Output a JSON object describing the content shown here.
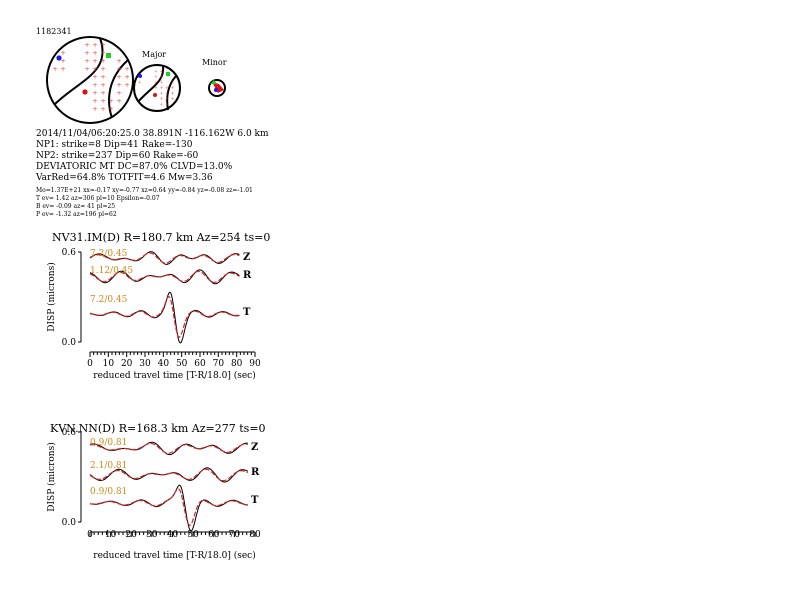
{
  "event_id": "1182341",
  "mechanism": {
    "major_label": "Major",
    "minor_label": "Minor"
  },
  "info": {
    "line1": "2014/11/04/06:20:25.0 38.891N -116.162W 6.0 km",
    "line2": "NP1: strike=8 Dip=41 Rake=-130",
    "line3": "NP2: strike=237 Dip=60 Rake=-60",
    "line4": "DEVIATORIC MT DC=87.0% CLVD=13.0%",
    "line5": "VarRed=64.8% TOTFIT=4.6 Mw=3.36",
    "tiny1": "Mo=1.37E+21 xx=-0.17 xy=-0.77 xz=0.64 yy=-0.84 yz=-0.08 zz=-1.01",
    "tiny2": "T ev=  1.42 az=306 pl=10 Epsilon=-0.07",
    "tiny3": "B ev= -0.09 az= 41 pl=25",
    "tiny4": "P ev= -1.32 az=196 pl=62"
  },
  "chart_data": [
    {
      "type": "line",
      "title": "NV31.IM(D) R=180.7 km Az=254 ts=0",
      "xlabel": "reduced travel time [T-R/18.0] (sec)",
      "ylabel": "DISP (microns)",
      "xlim": [
        0,
        90
      ],
      "ylim": [
        0.0,
        0.6
      ],
      "xticks": [
        "0",
        "10",
        "20",
        "30",
        "40",
        "50",
        "60",
        "70",
        "80",
        "90"
      ],
      "yticks": [
        "0.0",
        "0.6"
      ],
      "colors": {
        "observed": "#000000",
        "synthetic": "#dd2222"
      },
      "traces": [
        {
          "component": "Z",
          "fit_label": "7.2/0.45"
        },
        {
          "component": "R",
          "fit_label": "1.12/0.45"
        },
        {
          "component": "T",
          "fit_label": "7.2/0.45"
        }
      ]
    },
    {
      "type": "line",
      "title": "KVN.NN(D) R=168.3 km Az=277 ts=0",
      "xlabel": "reduced travel time [T-R/18.0] (sec)",
      "ylabel": "DISP (microns)",
      "xlim": [
        0,
        80
      ],
      "ylim": [
        0.0,
        0.6
      ],
      "xticks": [
        "0",
        "10",
        "20",
        "30",
        "40",
        "50",
        "60",
        "70",
        "80"
      ],
      "yticks": [
        "0.0",
        "0.6"
      ],
      "colors": {
        "observed": "#000000",
        "synthetic": "#dd2222"
      },
      "traces": [
        {
          "component": "Z",
          "fit_label": "0.9/0.81"
        },
        {
          "component": "R",
          "fit_label": "2.1/0.81"
        },
        {
          "component": "T",
          "fit_label": "0.9/0.81"
        }
      ]
    }
  ]
}
